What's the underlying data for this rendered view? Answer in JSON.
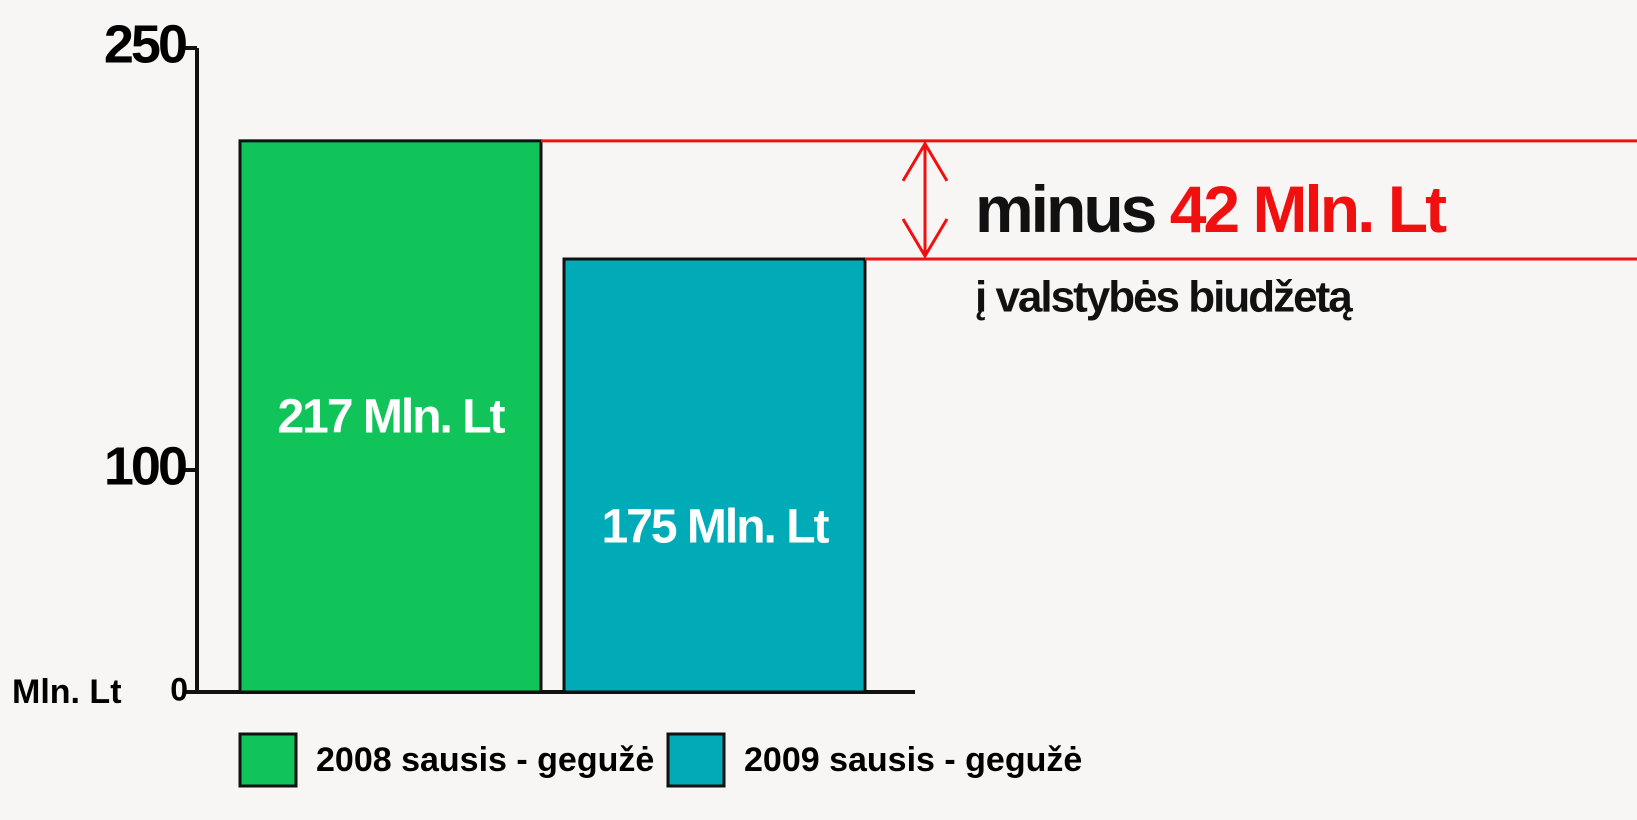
{
  "chart_data": {
    "type": "bar",
    "categories": [
      null
    ],
    "series": [
      {
        "name": "2008 sausis - gegužė",
        "color": "#10c45a",
        "values": [
          217
        ],
        "value_labels": [
          "217 Mln. Lt"
        ]
      },
      {
        "name": "2009 sausis - gegužė",
        "color": "#00abb8",
        "values": [
          175
        ],
        "value_labels": [
          "175 Mln. Lt"
        ]
      }
    ],
    "y_label": "Mln. Lt",
    "ylim": [
      0,
      250
    ],
    "yticks": [
      0,
      100,
      250
    ],
    "annotation": {
      "prefix": "minus",
      "value": 42,
      "label": "42 Mln. Lt",
      "note": "į valstybės biudžetą",
      "color": "#f01010"
    }
  }
}
